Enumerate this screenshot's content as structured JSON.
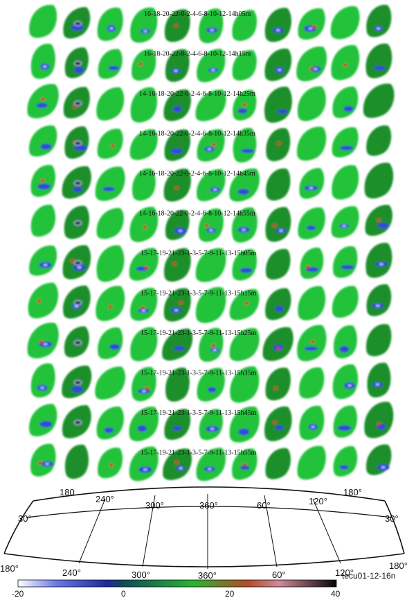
{
  "rows": [
    {
      "label": "16-18-20-22-0-2-4-6-8-10-12-14h05m"
    },
    {
      "label": "16-18-20-22-0-2-4-6-8-10-12-14h15m"
    },
    {
      "label": "14-16-18-20-22-0-2-4-6-8-10-12-14h25m"
    },
    {
      "label": "14-16-18-20-22-0-2-4-6-8-10-12-14h35m"
    },
    {
      "label": "14-16-18-20-22-0-2-4-6-8-10-12-14h45m"
    },
    {
      "label": "14-16-18-20-22-0-2-4-6-8-10-12-14h55m"
    },
    {
      "label": "15-17-19-21-23-1-3-5-7-9-11-13-15h05m"
    },
    {
      "label": "15-17-19-21-23-1-3-5-7-9-11-13-15h15m"
    },
    {
      "label": "15-17-19-21-23-1-3-5-7-9-11-13-15h25m"
    },
    {
      "label": "15-17-19-21-23-1-3-5-7-9-11-13-15h35m"
    },
    {
      "label": "15-17-19-21-23-1-3-5-7-9-11-13-15h45m"
    },
    {
      "label": "15-17-19-21-23-1-3-5-7-9-11-13-15h55m"
    }
  ],
  "grid": {
    "top_lon_labels": [
      "180",
      "240°",
      "300°",
      "360°",
      "60°",
      "120°",
      "180°"
    ],
    "bottom_lon_labels": [
      "180°",
      "240°",
      "300°",
      "360°",
      "60°",
      "120°",
      "180°"
    ],
    "lat_left": "30°",
    "lat_right": "30°"
  },
  "colorbar": {
    "ticks": [
      "-20",
      "0",
      "20",
      "40"
    ],
    "min": -20,
    "max": 40,
    "stops": [
      "#ffffff",
      "#2a32d8",
      "#0a3a6a",
      "#1fae2c",
      "#c83a2a",
      "#111111"
    ],
    "title": "tecu01-12-16n"
  },
  "colors": {
    "green": "#22c23a",
    "dark_green": "#1a8f2a",
    "blue": "#3546d8",
    "light_blue": "#b8c4ff",
    "red": "#c8402e",
    "black": "#111111"
  }
}
